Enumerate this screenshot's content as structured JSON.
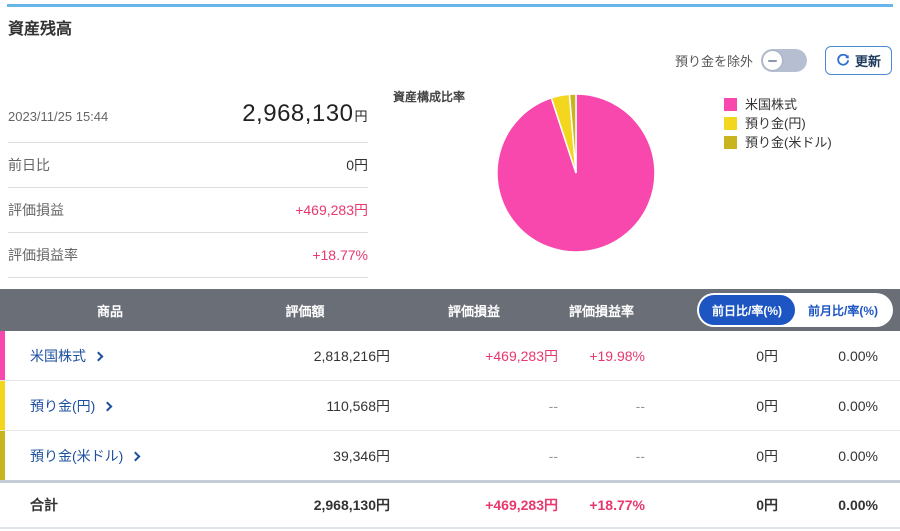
{
  "page": {
    "title": "資産残高"
  },
  "controls": {
    "exclude_toggle_label": "預り金を除外",
    "exclude_toggle_state": "off",
    "refresh_label": "更新"
  },
  "summary": {
    "timestamp": "2023/11/25 15:44",
    "total_amount": "2,968,130",
    "total_suffix": "円",
    "rows": [
      {
        "label": "前日比",
        "value": "0円"
      },
      {
        "label": "評価損益",
        "value": "+469,283円"
      },
      {
        "label": "評価損益率",
        "value": "+18.77%"
      }
    ]
  },
  "chart_data": {
    "type": "pie",
    "title": "資産構成比率",
    "labels": [
      "米国株式",
      "預り金(円)",
      "預り金(米ドル)"
    ],
    "values": [
      94.95,
      3.73,
      1.32
    ],
    "colors": [
      "#f847ad",
      "#f2d71e",
      "#c9b41d"
    ],
    "legend_position": "right",
    "start_angle_deg": 0,
    "direction": "clockwise"
  },
  "table": {
    "headers": [
      "商品",
      "評価額",
      "評価損益",
      "評価損益率"
    ],
    "toggle": {
      "selected_label": "前日比/率(%)",
      "unselected_label": "前月比/率(%)",
      "selected_color": "#1d56c2"
    },
    "rows": [
      {
        "name": "米国株式",
        "color": "#f847ad",
        "valuation": "2,818,216円",
        "pl": "+469,283円",
        "pl_rate": "+19.98%",
        "day_change": "0円",
        "day_rate": "0.00%"
      },
      {
        "name": "預り金(円)",
        "color": "#f2d71e",
        "valuation": "110,568円",
        "pl": "--",
        "pl_rate": "--",
        "day_change": "0円",
        "day_rate": "0.00%"
      },
      {
        "name": "預り金(米ドル)",
        "color": "#c9b41d",
        "valuation": "39,346円",
        "pl": "--",
        "pl_rate": "--",
        "day_change": "0円",
        "day_rate": "0.00%"
      }
    ],
    "total": {
      "name": "合計",
      "valuation": "2,968,130円",
      "pl": "+469,283円",
      "pl_rate": "+18.77%",
      "day_change": "0円",
      "day_rate": "0.00%"
    }
  }
}
